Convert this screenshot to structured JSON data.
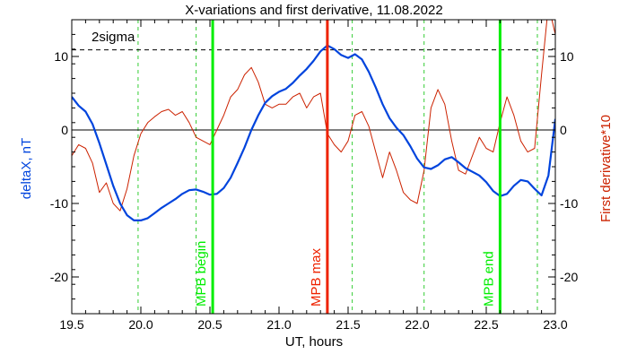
{
  "chart_data": {
    "type": "line",
    "title": "X-variations and first derivative, 11.08.2022",
    "xlabel": "UT, hours",
    "ylabel_left": "deltaX, nT",
    "ylabel_right": "First derivative*10",
    "xlim": [
      19.5,
      23.0
    ],
    "ylim": [
      -25,
      15
    ],
    "x_ticks": [
      "19.5",
      "20.0",
      "20.5",
      "21.0",
      "21.5",
      "22.0",
      "22.5",
      "23.0"
    ],
    "y_ticks_left": [
      "10",
      "0",
      "-10",
      "-20"
    ],
    "y_ticks_right": [
      "10",
      "0",
      "-10",
      "-20"
    ],
    "threshold": {
      "label": "2sigma",
      "value": 10.9
    },
    "zero_line": 0,
    "dashed_green_x": [
      19.98,
      20.4,
      21.53,
      22.05,
      22.87
    ],
    "markers": [
      {
        "label": "MPB begin",
        "x": 20.52,
        "color": "#00ee00"
      },
      {
        "label": "MPB max",
        "x": 21.35,
        "color": "#ee2200"
      },
      {
        "label": "MPB end",
        "x": 22.6,
        "color": "#00ee00"
      }
    ],
    "series": [
      {
        "name": "deltaX, nT",
        "color": "#0044dd",
        "x": [
          19.5,
          19.55,
          19.6,
          19.65,
          19.7,
          19.75,
          19.8,
          19.85,
          19.9,
          19.95,
          20.0,
          20.05,
          20.1,
          20.15,
          20.2,
          20.25,
          20.3,
          20.35,
          20.4,
          20.45,
          20.5,
          20.55,
          20.6,
          20.65,
          20.7,
          20.75,
          20.8,
          20.85,
          20.9,
          20.95,
          21.0,
          21.05,
          21.1,
          21.15,
          21.2,
          21.25,
          21.3,
          21.35,
          21.4,
          21.45,
          21.5,
          21.55,
          21.6,
          21.65,
          21.7,
          21.75,
          21.8,
          21.85,
          21.9,
          21.95,
          22.0,
          22.05,
          22.1,
          22.15,
          22.2,
          22.25,
          22.3,
          22.35,
          22.4,
          22.45,
          22.5,
          22.55,
          22.6,
          22.65,
          22.7,
          22.75,
          22.8,
          22.85,
          22.9,
          22.95,
          23.0
        ],
        "values": [
          4.5,
          3.3,
          2.5,
          0.8,
          -1.8,
          -4.7,
          -7.6,
          -10.0,
          -11.6,
          -12.3,
          -12.3,
          -12.0,
          -11.3,
          -10.6,
          -10.0,
          -9.4,
          -8.7,
          -8.2,
          -8.1,
          -8.4,
          -8.8,
          -8.7,
          -7.9,
          -6.5,
          -4.5,
          -2.4,
          0.0,
          2.0,
          3.7,
          4.6,
          5.2,
          5.6,
          6.4,
          7.4,
          8.3,
          9.4,
          10.7,
          11.5,
          11.0,
          10.2,
          9.8,
          10.3,
          9.6,
          7.9,
          5.8,
          3.5,
          1.6,
          0.3,
          -0.7,
          -2.2,
          -3.9,
          -5.1,
          -5.3,
          -4.8,
          -4.0,
          -3.7,
          -4.4,
          -5.2,
          -5.7,
          -6.2,
          -7.1,
          -8.3,
          -9.0,
          -8.7,
          -7.6,
          -6.8,
          -7.0,
          -8.0,
          -8.9,
          -6.2,
          1.5
        ]
      },
      {
        "name": "First derivative*10",
        "color": "#cc2200",
        "x": [
          19.5,
          19.55,
          19.6,
          19.65,
          19.7,
          19.75,
          19.8,
          19.85,
          19.9,
          19.95,
          20.0,
          20.05,
          20.1,
          20.15,
          20.2,
          20.25,
          20.3,
          20.35,
          20.4,
          20.45,
          20.5,
          20.55,
          20.6,
          20.65,
          20.7,
          20.75,
          20.8,
          20.85,
          20.9,
          20.95,
          21.0,
          21.05,
          21.1,
          21.15,
          21.2,
          21.25,
          21.3,
          21.35,
          21.4,
          21.45,
          21.5,
          21.55,
          21.6,
          21.65,
          21.7,
          21.75,
          21.8,
          21.85,
          21.9,
          21.95,
          22.0,
          22.05,
          22.1,
          22.15,
          22.2,
          22.25,
          22.3,
          22.35,
          22.4,
          22.45,
          22.5,
          22.55,
          22.6,
          22.65,
          22.7,
          22.75,
          22.8,
          22.85,
          22.9,
          22.95,
          23.0
        ],
        "values": [
          -3.5,
          -2.0,
          -2.5,
          -4.5,
          -8.5,
          -7.2,
          -10.0,
          -11.0,
          -8.0,
          -3.5,
          -0.5,
          1.0,
          1.8,
          2.5,
          2.8,
          2.0,
          2.5,
          1.0,
          -1.0,
          -1.5,
          -2.0,
          0.0,
          2.0,
          4.5,
          5.5,
          7.5,
          8.5,
          6.5,
          3.5,
          3.0,
          3.5,
          3.5,
          4.5,
          5.0,
          3.0,
          4.5,
          5.0,
          -0.5,
          -2.0,
          -3.0,
          -1.5,
          2.0,
          2.5,
          0.5,
          -3.0,
          -6.5,
          -3.0,
          -5.5,
          -8.5,
          -9.5,
          -10.0,
          -5.5,
          3.0,
          5.5,
          3.5,
          -1.5,
          -5.5,
          -6.0,
          -3.5,
          -1.0,
          -2.5,
          -3.0,
          1.0,
          4.5,
          2.0,
          -1.5,
          -3.0,
          -2.5,
          7.5,
          17.0,
          13.0
        ]
      }
    ]
  }
}
